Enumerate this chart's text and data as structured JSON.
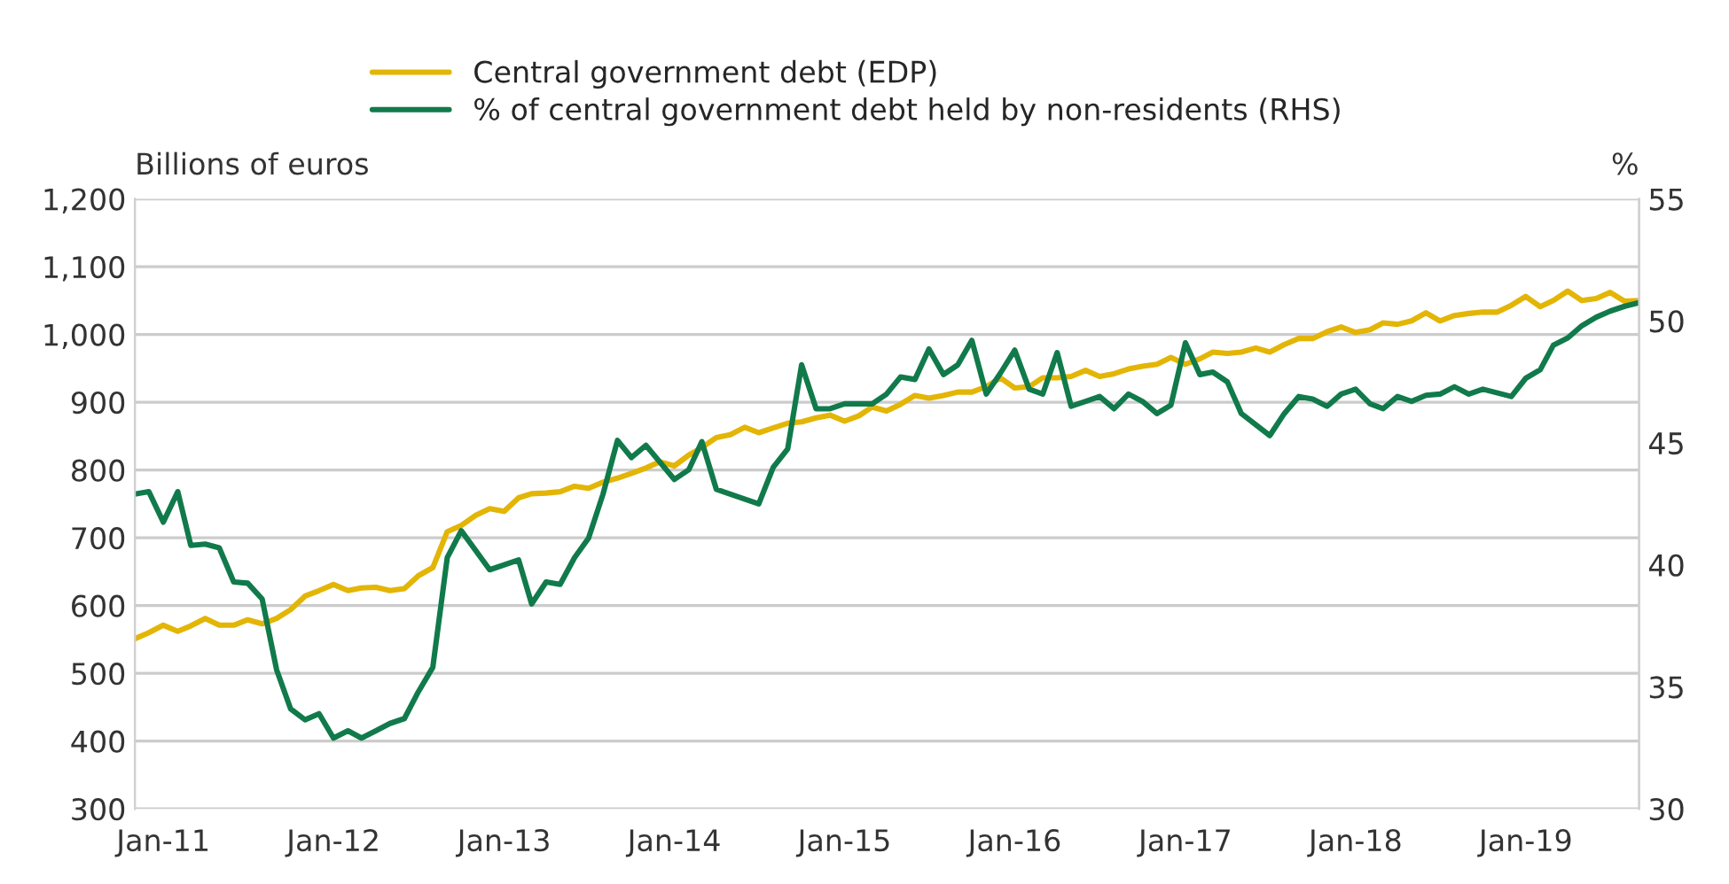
{
  "chart_data": {
    "type": "line",
    "ylabel": "Billions of euros",
    "y2label": "%",
    "x": [
      "2010-11",
      "2010-12",
      "2011-01",
      "2011-02",
      "2011-03",
      "2011-04",
      "2011-05",
      "2011-06",
      "2011-07",
      "2011-08",
      "2011-09",
      "2011-10",
      "2011-11",
      "2011-12",
      "2012-01",
      "2012-02",
      "2012-03",
      "2012-04",
      "2012-05",
      "2012-06",
      "2012-07",
      "2012-08",
      "2012-09",
      "2012-10",
      "2012-11",
      "2012-12",
      "2013-01",
      "2013-02",
      "2013-03",
      "2013-04",
      "2013-05",
      "2013-06",
      "2013-07",
      "2013-08",
      "2013-09",
      "2013-10",
      "2013-11",
      "2013-12",
      "2014-01",
      "2014-02",
      "2014-03",
      "2014-04",
      "2014-05",
      "2014-06",
      "2014-07",
      "2014-08",
      "2014-09",
      "2014-10",
      "2014-11",
      "2014-12",
      "2015-01",
      "2015-02",
      "2015-03",
      "2015-04",
      "2015-05",
      "2015-06",
      "2015-07",
      "2015-08",
      "2015-09",
      "2015-10",
      "2015-11",
      "2015-12",
      "2016-01",
      "2016-02",
      "2016-03",
      "2016-04",
      "2016-05",
      "2016-06",
      "2016-07",
      "2016-08",
      "2016-09",
      "2016-10",
      "2016-11",
      "2016-12",
      "2017-01",
      "2017-02",
      "2017-03",
      "2017-04",
      "2017-05",
      "2017-06",
      "2017-07",
      "2017-08",
      "2017-09",
      "2017-10",
      "2017-11",
      "2017-12",
      "2018-01",
      "2018-02",
      "2018-03",
      "2018-04",
      "2018-05",
      "2018-06",
      "2018-07",
      "2018-08",
      "2018-09",
      "2018-10",
      "2018-11",
      "2018-12",
      "2019-01",
      "2019-02",
      "2019-03",
      "2019-04",
      "2019-05",
      "2019-06",
      "2019-07",
      "2019-08",
      "2019-09"
    ],
    "series": [
      {
        "name": "Central government debt (EDP)",
        "color": "#e3b505",
        "values": [
          551,
          560,
          571,
          562,
          570,
          581,
          571,
          571,
          579,
          573,
          581,
          594,
          614,
          622,
          631,
          622,
          626,
          627,
          622,
          625,
          644,
          656,
          709,
          718,
          733,
          743,
          739,
          759,
          765,
          766,
          768,
          776,
          773,
          782,
          788,
          795,
          803,
          812,
          806,
          822,
          833,
          848,
          852,
          863,
          855,
          862,
          869,
          871,
          877,
          881,
          872,
          880,
          893,
          887,
          897,
          910,
          906,
          910,
          915,
          915,
          923,
          936,
          921,
          923,
          936,
          936,
          938,
          947,
          938,
          942,
          949,
          953,
          956,
          966,
          956,
          964,
          974,
          972,
          974,
          980,
          974,
          985,
          994,
          994,
          1004,
          1011,
          1003,
          1007,
          1017,
          1015,
          1020,
          1032,
          1020,
          1028,
          1031,
          1033,
          1033,
          1043,
          1056,
          1041,
          1050,
          1064,
          1050,
          1053,
          1062,
          1049,
          1050
        ]
      },
      {
        "name": "% of central government debt held by non-residents (RHS)",
        "color": "#117a4b",
        "axis": "y2",
        "x": [
          "2010-11",
          "2010-12",
          "2011-01",
          "2011-02",
          "2011-03",
          "2011-04",
          "2011-05",
          "2011-06",
          "2011-07",
          "2011-08",
          "2011-09",
          "2011-10",
          "2011-11",
          "2011-12",
          "2012-01",
          "2012-02",
          "2012-03",
          "2012-04",
          "2012-05",
          "2012-06",
          "2012-07",
          "2012-08",
          "2012-09",
          "2012-10",
          "2012-12",
          "2013-02",
          "2013-03",
          "2013-04",
          "2013-05",
          "2013-06",
          "2013-07",
          "2013-08",
          "2013-09",
          "2013-10",
          "2013-11",
          "2014-01",
          "2014-02",
          "2014-03",
          "2014-04",
          "2014-05",
          "2014-07",
          "2014-08",
          "2014-09",
          "2014-10",
          "2014-11",
          "2014-12",
          "2015-01",
          "2015-03",
          "2015-04",
          "2015-05",
          "2015-06",
          "2015-07",
          "2015-08",
          "2015-09",
          "2015-10",
          "2015-11",
          "2015-12",
          "2016-01",
          "2016-02",
          "2016-03",
          "2016-04",
          "2016-05",
          "2016-06",
          "2016-07",
          "2016-08",
          "2016-09",
          "2016-10",
          "2016-11",
          "2016-12",
          "2017-01",
          "2017-02",
          "2017-03",
          "2017-04",
          "2017-05",
          "2017-07",
          "2017-08",
          "2017-09",
          "2017-10",
          "2017-11",
          "2017-12",
          "2018-01",
          "2018-02",
          "2018-03",
          "2018-04",
          "2018-05",
          "2018-06",
          "2018-07",
          "2018-08",
          "2018-09",
          "2018-10",
          "2018-12",
          "2019-01",
          "2019-02",
          "2019-03",
          "2019-04",
          "2019-05",
          "2019-06",
          "2019-07",
          "2019-08",
          "2019-09"
        ],
        "values": [
          42.9,
          43.0,
          41.75,
          43.0,
          40.8,
          40.85,
          40.7,
          39.3,
          39.25,
          38.6,
          35.7,
          34.1,
          33.65,
          33.9,
          32.9,
          33.2,
          32.9,
          33.2,
          33.5,
          33.7,
          34.8,
          35.8,
          40.3,
          41.4,
          39.8,
          40.2,
          38.4,
          39.3,
          39.2,
          40.3,
          41.1,
          42.9,
          45.1,
          44.4,
          44.9,
          43.5,
          43.9,
          45.05,
          43.1,
          42.9,
          42.5,
          44.0,
          44.75,
          48.2,
          46.4,
          46.4,
          46.6,
          46.6,
          47.0,
          47.7,
          47.6,
          48.85,
          47.8,
          48.2,
          49.2,
          47.0,
          47.85,
          48.8,
          47.2,
          47.0,
          48.7,
          46.5,
          46.7,
          46.9,
          46.4,
          47.0,
          46.7,
          46.2,
          46.55,
          49.1,
          47.8,
          47.9,
          47.5,
          46.2,
          45.3,
          46.2,
          46.9,
          46.8,
          46.5,
          47.0,
          47.2,
          46.6,
          46.4,
          46.9,
          46.7,
          46.95,
          47.0,
          47.3,
          47.0,
          47.2,
          46.9,
          47.65,
          48.0,
          49.0,
          49.3,
          49.8,
          50.15,
          50.4,
          50.6,
          50.75
        ]
      }
    ],
    "xlim": [
      "2010-11",
      "2019-09"
    ],
    "xticks": [
      {
        "value": "2011-01",
        "label": "Jan-11"
      },
      {
        "value": "2012-01",
        "label": "Jan-12"
      },
      {
        "value": "2013-01",
        "label": "Jan-13"
      },
      {
        "value": "2014-01",
        "label": "Jan-14"
      },
      {
        "value": "2015-01",
        "label": "Jan-15"
      },
      {
        "value": "2016-01",
        "label": "Jan-16"
      },
      {
        "value": "2017-01",
        "label": "Jan-17"
      },
      {
        "value": "2018-01",
        "label": "Jan-18"
      },
      {
        "value": "2019-01",
        "label": "Jan-19"
      }
    ],
    "ylim": [
      300,
      1200
    ],
    "yticks": [
      300,
      400,
      500,
      600,
      700,
      800,
      900,
      {
        "value": 1000,
        "label": "1,000"
      },
      {
        "value": 1100,
        "label": "1,100"
      },
      {
        "value": 1200,
        "label": "1,200"
      }
    ],
    "y2lim": [
      30,
      55
    ],
    "y2ticks": [
      30,
      35,
      40,
      45,
      50,
      55
    ],
    "grid": "y",
    "legend": "top",
    "marker": "none",
    "line_style": "solid"
  }
}
